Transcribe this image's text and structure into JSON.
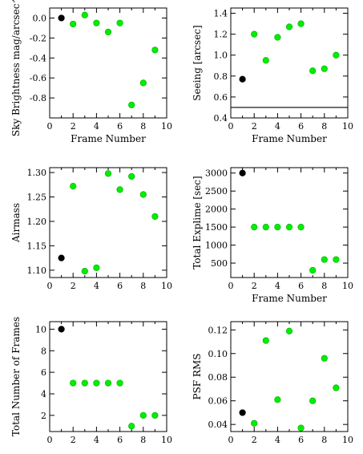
{
  "colors": {
    "first_frame": "#000000",
    "other_frames": "#00ee00",
    "marker_outline": "#00aa00",
    "axis": "#000000"
  },
  "chart_data": [
    {
      "type": "scatter",
      "xlabel": "Frame Number",
      "ylabel": "Sky Brightness mag/arcsec^2",
      "xlim": [
        0,
        10
      ],
      "ylim": [
        -1.0,
        0.1
      ],
      "xticks": [
        "0",
        "2",
        "4",
        "6",
        "8",
        "10"
      ],
      "yticks": [
        "0.0",
        "-0.2",
        "-0.4",
        "-0.6",
        "-0.8"
      ],
      "ytick_values": [
        0.0,
        -0.2,
        -0.4,
        -0.6,
        -0.8
      ],
      "points": [
        {
          "x": 1,
          "y": 0.0,
          "group": "first"
        },
        {
          "x": 2,
          "y": -0.06,
          "group": "other"
        },
        {
          "x": 3,
          "y": 0.03,
          "group": "other"
        },
        {
          "x": 4,
          "y": -0.05,
          "group": "other"
        },
        {
          "x": 5,
          "y": -0.14,
          "group": "other"
        },
        {
          "x": 6,
          "y": -0.05,
          "group": "other"
        },
        {
          "x": 7,
          "y": -0.87,
          "group": "other"
        },
        {
          "x": 8,
          "y": -0.65,
          "group": "other"
        },
        {
          "x": 9,
          "y": -0.32,
          "group": "other"
        }
      ]
    },
    {
      "type": "scatter",
      "xlabel": "Frame Number",
      "ylabel": "Seeing [arcsec]",
      "xlim": [
        0,
        10
      ],
      "ylim": [
        0.4,
        1.45
      ],
      "xticks": [
        "0",
        "2",
        "4",
        "6",
        "8",
        "10"
      ],
      "yticks": [
        "0.4",
        "0.6",
        "0.8",
        "1.0",
        "1.2",
        "1.4"
      ],
      "ytick_values": [
        0.4,
        0.6,
        0.8,
        1.0,
        1.2,
        1.4
      ],
      "reference_line_y": 0.5,
      "points": [
        {
          "x": 1,
          "y": 0.77,
          "group": "first"
        },
        {
          "x": 2,
          "y": 1.2,
          "group": "other"
        },
        {
          "x": 3,
          "y": 0.95,
          "group": "other"
        },
        {
          "x": 4,
          "y": 1.17,
          "group": "other"
        },
        {
          "x": 5,
          "y": 1.27,
          "group": "other"
        },
        {
          "x": 6,
          "y": 1.3,
          "group": "other"
        },
        {
          "x": 7,
          "y": 0.85,
          "group": "other"
        },
        {
          "x": 8,
          "y": 0.87,
          "group": "other"
        },
        {
          "x": 9,
          "y": 1.0,
          "group": "other"
        }
      ]
    },
    {
      "type": "scatter",
      "xlabel": "",
      "ylabel": "Airmass",
      "xlim": [
        0,
        10
      ],
      "ylim": [
        1.085,
        1.31
      ],
      "xticks": [
        "0",
        "2",
        "4",
        "6",
        "8",
        "10"
      ],
      "yticks": [
        "1.10",
        "1.15",
        "1.20",
        "1.25",
        "1.30"
      ],
      "ytick_values": [
        1.1,
        1.15,
        1.2,
        1.25,
        1.3
      ],
      "points": [
        {
          "x": 1,
          "y": 1.125,
          "group": "first"
        },
        {
          "x": 2,
          "y": 1.272,
          "group": "other"
        },
        {
          "x": 3,
          "y": 1.098,
          "group": "other"
        },
        {
          "x": 4,
          "y": 1.105,
          "group": "other"
        },
        {
          "x": 5,
          "y": 1.298,
          "group": "other"
        },
        {
          "x": 6,
          "y": 1.265,
          "group": "other"
        },
        {
          "x": 7,
          "y": 1.292,
          "group": "other"
        },
        {
          "x": 8,
          "y": 1.255,
          "group": "other"
        },
        {
          "x": 9,
          "y": 1.21,
          "group": "other"
        }
      ]
    },
    {
      "type": "scatter",
      "xlabel": "Frame Number",
      "ylabel": "Total Explime [sec]",
      "xlim": [
        0,
        10
      ],
      "ylim": [
        100,
        3150
      ],
      "xticks": [
        "0",
        "2",
        "4",
        "6",
        "8",
        "10"
      ],
      "yticks": [
        "500",
        "1000",
        "1500",
        "2000",
        "2500",
        "3000"
      ],
      "ytick_values": [
        500,
        1000,
        1500,
        2000,
        2500,
        3000
      ],
      "points": [
        {
          "x": 1,
          "y": 3000,
          "group": "first"
        },
        {
          "x": 2,
          "y": 1500,
          "group": "other"
        },
        {
          "x": 3,
          "y": 1500,
          "group": "other"
        },
        {
          "x": 4,
          "y": 1500,
          "group": "other"
        },
        {
          "x": 5,
          "y": 1500,
          "group": "other"
        },
        {
          "x": 6,
          "y": 1500,
          "group": "other"
        },
        {
          "x": 7,
          "y": 300,
          "group": "other"
        },
        {
          "x": 8,
          "y": 600,
          "group": "other"
        },
        {
          "x": 9,
          "y": 600,
          "group": "other"
        }
      ]
    },
    {
      "type": "scatter",
      "xlabel": "",
      "ylabel": "Total Number of Frames",
      "xlim": [
        0,
        10
      ],
      "ylim": [
        0.5,
        10.7
      ],
      "xticks": [
        "0",
        "2",
        "4",
        "6",
        "8",
        "10"
      ],
      "yticks": [
        "2",
        "4",
        "6",
        "8",
        "10"
      ],
      "ytick_values": [
        2,
        4,
        6,
        8,
        10
      ],
      "points": [
        {
          "x": 1,
          "y": 10,
          "group": "first"
        },
        {
          "x": 2,
          "y": 5,
          "group": "other"
        },
        {
          "x": 3,
          "y": 5,
          "group": "other"
        },
        {
          "x": 4,
          "y": 5,
          "group": "other"
        },
        {
          "x": 5,
          "y": 5,
          "group": "other"
        },
        {
          "x": 6,
          "y": 5,
          "group": "other"
        },
        {
          "x": 7,
          "y": 1,
          "group": "other"
        },
        {
          "x": 8,
          "y": 2,
          "group": "other"
        },
        {
          "x": 9,
          "y": 2,
          "group": "other"
        }
      ]
    },
    {
      "type": "scatter",
      "xlabel": "",
      "ylabel": "PSF RMS",
      "xlim": [
        0,
        10
      ],
      "ylim": [
        0.034,
        0.127
      ],
      "xticks": [
        "0",
        "2",
        "4",
        "6",
        "8",
        "10"
      ],
      "yticks": [
        "0.04",
        "0.06",
        "0.08",
        "0.10",
        "0.12"
      ],
      "ytick_values": [
        0.04,
        0.06,
        0.08,
        0.1,
        0.12
      ],
      "points": [
        {
          "x": 1,
          "y": 0.05,
          "group": "first"
        },
        {
          "x": 2,
          "y": 0.041,
          "group": "other"
        },
        {
          "x": 3,
          "y": 0.111,
          "group": "other"
        },
        {
          "x": 4,
          "y": 0.061,
          "group": "other"
        },
        {
          "x": 5,
          "y": 0.119,
          "group": "other"
        },
        {
          "x": 6,
          "y": 0.037,
          "group": "other"
        },
        {
          "x": 7,
          "y": 0.06,
          "group": "other"
        },
        {
          "x": 8,
          "y": 0.096,
          "group": "other"
        },
        {
          "x": 9,
          "y": 0.071,
          "group": "other"
        }
      ]
    }
  ]
}
